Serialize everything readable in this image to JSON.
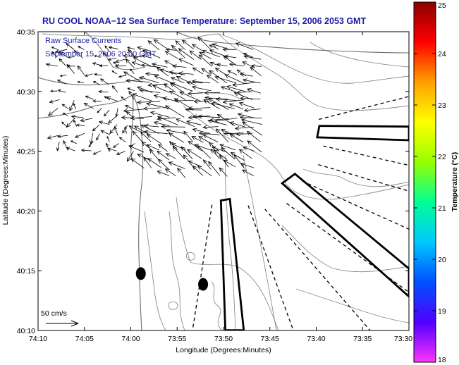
{
  "title": "RU COOL  NOAA−12  Sea Surface Temperature:  September 15, 2006 2053 GMT",
  "subtitle": {
    "line1": "Raw Surface Currents",
    "line2": "September 15, 2006 20:00 GMT"
  },
  "x_axis": {
    "label": "Longitude (Degrees:Minutes)",
    "ticks": [
      "74:10",
      "74:05",
      "74:00",
      "73:55",
      "73:50",
      "73:45",
      "73:40",
      "73:35",
      "73:30"
    ]
  },
  "y_axis": {
    "label": "Latitude (Degrees:Minutes)",
    "ticks": [
      "40:10",
      "40:15",
      "40:20",
      "40:25",
      "40:30",
      "40:35"
    ]
  },
  "scale_label": "50 cm/s",
  "colorbar": {
    "label": "Temperature (°C)",
    "ticks": [
      "18",
      "19",
      "20",
      "21",
      "22",
      "23",
      "24",
      "25"
    ],
    "colors": [
      "#ff33ff",
      "#5000ff",
      "#0050ff",
      "#00c8ff",
      "#00ff96",
      "#96ff00",
      "#ffff00",
      "#ffa000",
      "#ff0000",
      "#8b0000"
    ]
  },
  "chart_data": {
    "type": "map",
    "title": "RU COOL  NOAA−12  Sea Surface Temperature:  September 15, 2006 2053 GMT",
    "xlim": [
      -74.1667,
      -73.5
    ],
    "ylim": [
      40.1667,
      40.5833
    ],
    "xlabel": "Longitude (Degrees:Minutes)",
    "ylabel": "Latitude (Degrees:Minutes)",
    "colorbar_range": [
      18,
      25
    ],
    "vector_scale": "50 cm/s",
    "sst_pixels": "none visible",
    "buoys": [
      {
        "lon": -73.982,
        "lat": 40.246
      },
      {
        "lon": -73.87,
        "lat": 40.231
      }
    ],
    "boxes": [
      {
        "points": [
          [
            -73.661,
            40.452
          ],
          [
            -73.5,
            40.451
          ],
          [
            -73.5,
            40.432
          ],
          [
            -73.665,
            40.436
          ]
        ]
      },
      {
        "points": [
          [
            -73.728,
            40.372
          ],
          [
            -73.705,
            40.385
          ],
          [
            -73.5,
            40.253
          ],
          [
            -73.5,
            40.214
          ]
        ]
      },
      {
        "points": [
          [
            -73.838,
            40.348
          ],
          [
            -73.822,
            40.35
          ],
          [
            -73.797,
            40.167
          ],
          [
            -73.83,
            40.167
          ]
        ]
      }
    ],
    "dashed_lines": [
      {
        "points": [
          [
            -73.662,
            40.461
          ],
          [
            -73.5,
            40.493
          ]
        ]
      },
      {
        "points": [
          [
            -73.654,
            40.424
          ],
          [
            -73.5,
            40.397
          ]
        ]
      },
      {
        "points": [
          [
            -73.663,
            40.398
          ],
          [
            -73.5,
            40.361
          ]
        ]
      },
      {
        "points": [
          [
            -73.692,
            40.375
          ],
          [
            -73.5,
            40.308
          ]
        ]
      },
      {
        "points": [
          [
            -73.72,
            40.344
          ],
          [
            -73.5,
            40.22
          ]
        ]
      },
      {
        "points": [
          [
            -73.759,
            40.336
          ],
          [
            -73.57,
            40.167
          ]
        ]
      },
      {
        "points": [
          [
            -73.789,
            40.341
          ],
          [
            -73.708,
            40.167
          ]
        ]
      },
      {
        "points": [
          [
            -73.854,
            40.342
          ],
          [
            -73.889,
            40.167
          ]
        ]
      }
    ],
    "currents_region": {
      "lon": [
        -74.13,
        -73.76
      ],
      "lat": [
        40.37,
        40.57
      ]
    }
  }
}
